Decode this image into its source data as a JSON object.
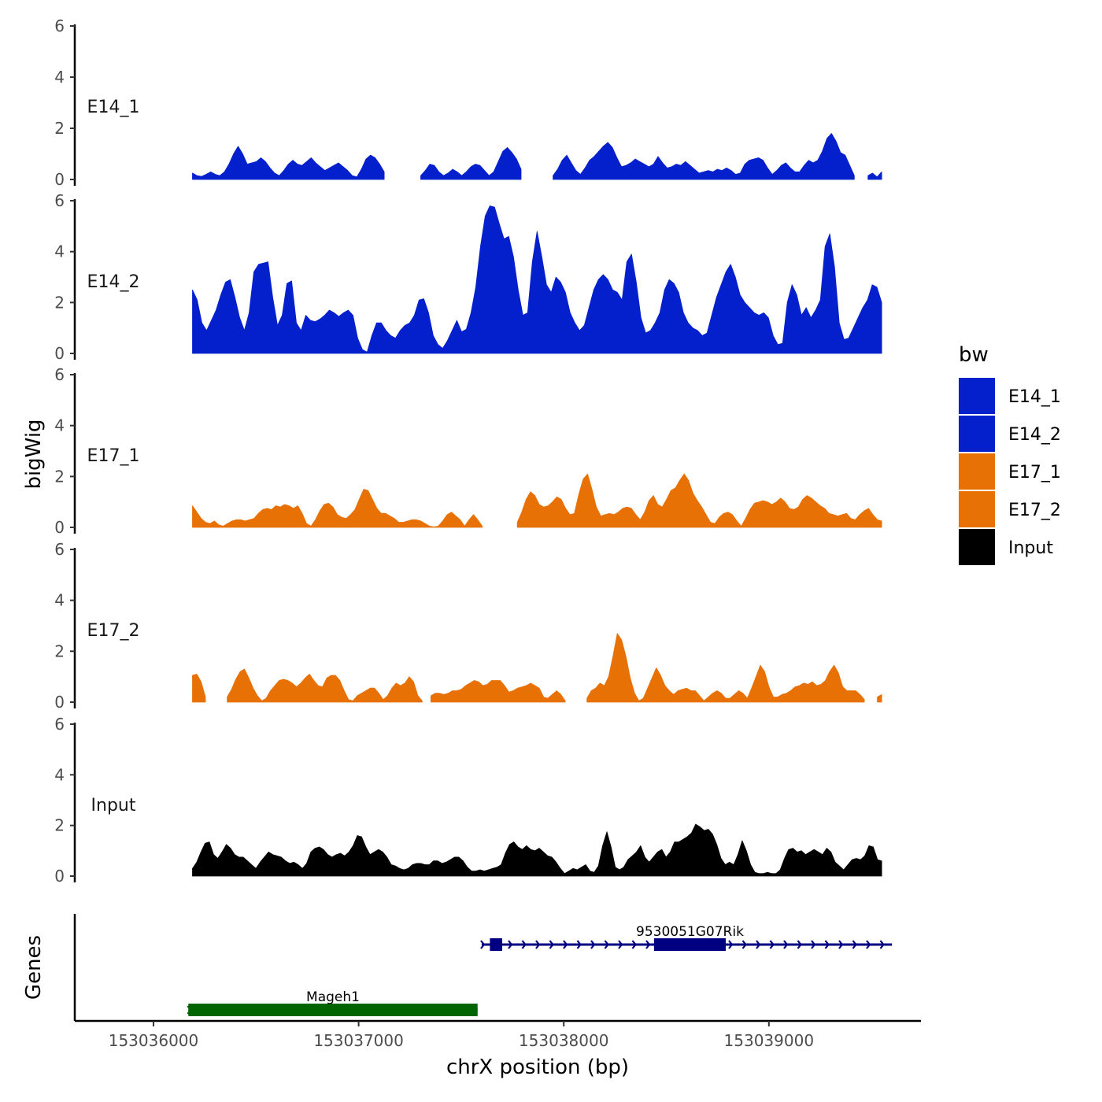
{
  "chart_data": {
    "type": "area",
    "title": "",
    "ylabel": "bigWig",
    "xlabel": "chrX position (bp)",
    "xlim": [
      153035750,
      153039850
    ],
    "ylim": [
      0,
      6
    ],
    "y_ticks": [
      0,
      2,
      4,
      6
    ],
    "x_ticks": [
      153036000,
      153037000,
      153038000,
      153039000
    ],
    "x_tick_labels": [
      "153036000",
      "153037000",
      "153038000",
      "153039000"
    ],
    "data_start": 153036190,
    "data_end": 153039550,
    "tracks": [
      {
        "name": "E14_1",
        "color": "#0320CC",
        "values": [
          0.25,
          0.15,
          0.12,
          0.2,
          0.3,
          0.2,
          0.15,
          0.3,
          0.6,
          1.0,
          1.3,
          1.0,
          0.6,
          0.65,
          0.7,
          0.85,
          0.7,
          0.45,
          0.25,
          0.15,
          0.35,
          0.6,
          0.75,
          0.6,
          0.55,
          0.7,
          0.85,
          0.65,
          0.5,
          0.35,
          0.45,
          0.55,
          0.65,
          0.5,
          0.35,
          0.15,
          0.1,
          0.4,
          0.8,
          0.95,
          0.85,
          0.6,
          0.3,
          null,
          null,
          null,
          null,
          null,
          null,
          null,
          0.15,
          0.35,
          0.6,
          0.55,
          0.3,
          0.15,
          0.25,
          0.4,
          0.3,
          0.15,
          0.3,
          0.5,
          0.6,
          0.55,
          0.35,
          0.15,
          0.3,
          0.7,
          1.1,
          1.25,
          1.05,
          0.8,
          0.4,
          null,
          null,
          null,
          null,
          null,
          null,
          0.15,
          0.4,
          0.75,
          0.95,
          0.65,
          0.35,
          0.2,
          0.45,
          0.75,
          0.9,
          1.1,
          1.3,
          1.45,
          1.25,
          0.85,
          0.5,
          0.55,
          0.65,
          0.8,
          0.7,
          0.6,
          0.5,
          0.6,
          0.9,
          0.65,
          0.45,
          0.5,
          0.6,
          0.55,
          0.7,
          0.55,
          0.4,
          0.25,
          0.3,
          0.35,
          0.3,
          0.4,
          0.35,
          0.45,
          0.35,
          0.2,
          0.25,
          0.6,
          0.75,
          0.8,
          0.85,
          0.75,
          0.45,
          0.2,
          0.35,
          0.55,
          0.65,
          0.45,
          0.3,
          0.3,
          0.55,
          0.75,
          0.65,
          0.75,
          1.1,
          1.6,
          1.8,
          1.5,
          1.05,
          0.95,
          0.55,
          0.15,
          null,
          null,
          0.15,
          0.25,
          0.1,
          0.3
        ]
      },
      {
        "name": "E14_2",
        "color": "#0320CC",
        "values": [
          2.5,
          2.1,
          1.2,
          0.9,
          1.3,
          1.7,
          2.3,
          2.8,
          2.9,
          2.2,
          1.4,
          0.9,
          1.6,
          3.2,
          3.5,
          3.55,
          3.6,
          2.2,
          1.1,
          1.5,
          2.75,
          2.85,
          1.2,
          0.9,
          1.5,
          1.3,
          1.25,
          1.35,
          1.5,
          1.7,
          1.6,
          1.45,
          1.6,
          1.7,
          1.5,
          0.6,
          0.15,
          0.05,
          0.7,
          1.2,
          1.2,
          0.9,
          0.7,
          0.6,
          0.9,
          1.1,
          1.2,
          1.5,
          2.1,
          2.15,
          1.6,
          0.7,
          0.35,
          0.2,
          0.5,
          0.9,
          1.3,
          0.85,
          0.95,
          1.6,
          2.6,
          4.2,
          5.4,
          5.8,
          5.75,
          5.1,
          4.5,
          4.6,
          3.8,
          2.5,
          1.5,
          1.6,
          3.6,
          4.8,
          3.8,
          2.7,
          2.4,
          3.0,
          2.8,
          2.4,
          1.6,
          1.2,
          0.9,
          1.1,
          1.8,
          2.5,
          2.9,
          3.1,
          2.9,
          2.5,
          2.4,
          2.1,
          3.6,
          3.9,
          2.8,
          1.4,
          0.8,
          0.9,
          1.2,
          1.6,
          2.5,
          2.9,
          2.75,
          2.4,
          1.6,
          1.2,
          1.0,
          0.9,
          0.7,
          0.8,
          1.5,
          2.2,
          2.7,
          3.2,
          3.5,
          3.0,
          2.3,
          2.0,
          1.8,
          1.6,
          1.5,
          1.6,
          1.4,
          0.7,
          0.35,
          0.4,
          2.0,
          2.7,
          2.3,
          1.5,
          1.8,
          1.4,
          1.7,
          2.1,
          4.2,
          4.7,
          3.4,
          1.2,
          0.55,
          0.6,
          1.0,
          1.4,
          1.8,
          2.1,
          2.7,
          2.6,
          2.0
        ]
      },
      {
        "name": "E17_1",
        "color": "#E87106",
        "values": [
          0.85,
          0.6,
          0.35,
          0.2,
          0.15,
          0.25,
          0.1,
          0.05,
          0.15,
          0.25,
          0.3,
          0.3,
          0.25,
          0.3,
          0.35,
          0.55,
          0.7,
          0.75,
          0.7,
          0.85,
          0.8,
          0.9,
          0.85,
          0.75,
          0.85,
          0.55,
          0.15,
          0.05,
          0.3,
          0.65,
          0.9,
          0.95,
          0.8,
          0.5,
          0.4,
          0.35,
          0.5,
          0.7,
          1.1,
          1.5,
          1.45,
          1.1,
          0.75,
          0.55,
          0.55,
          0.45,
          0.35,
          0.2,
          0.2,
          0.25,
          0.3,
          0.3,
          0.25,
          0.15,
          0.05,
          0.02,
          0.05,
          0.25,
          0.5,
          0.6,
          0.45,
          0.3,
          0.05,
          0.3,
          0.5,
          0.3,
          0.05,
          null,
          null,
          null,
          null,
          null,
          null,
          null,
          0.2,
          0.6,
          1.1,
          1.4,
          1.25,
          0.9,
          0.8,
          0.85,
          1.0,
          1.2,
          1.1,
          0.75,
          0.5,
          0.55,
          1.3,
          1.9,
          2.1,
          1.5,
          0.8,
          0.45,
          0.5,
          0.55,
          0.5,
          0.6,
          0.75,
          0.8,
          0.75,
          0.5,
          0.3,
          0.6,
          1.05,
          1.25,
          0.9,
          0.8,
          1.1,
          1.45,
          1.55,
          1.85,
          2.1,
          1.85,
          1.35,
          1.05,
          0.8,
          0.5,
          0.2,
          0.15,
          0.4,
          0.55,
          0.6,
          0.5,
          0.25,
          0.05,
          0.35,
          0.7,
          0.95,
          1.0,
          1.05,
          1.0,
          0.9,
          1.0,
          1.15,
          1.0,
          0.75,
          0.7,
          0.8,
          1.1,
          1.25,
          1.15,
          1.0,
          0.85,
          0.75,
          0.55,
          0.5,
          0.45,
          0.5,
          0.55,
          0.35,
          0.3,
          0.5,
          0.65,
          0.75,
          0.5,
          0.3,
          0.25
        ]
      },
      {
        "name": "E17_2",
        "color": "#E87106",
        "values": [
          1.05,
          1.1,
          0.8,
          0.2,
          null,
          null,
          null,
          null,
          0.2,
          0.5,
          0.9,
          1.2,
          1.3,
          0.95,
          0.55,
          0.25,
          0.05,
          0.15,
          0.45,
          0.65,
          0.85,
          0.9,
          0.85,
          0.75,
          0.6,
          0.75,
          0.95,
          1.1,
          0.85,
          0.65,
          0.6,
          0.95,
          1.05,
          1.05,
          0.85,
          0.45,
          0.1,
          0.05,
          0.25,
          0.35,
          0.45,
          0.55,
          0.55,
          0.35,
          0.1,
          0.25,
          0.55,
          0.75,
          0.65,
          0.75,
          1.0,
          0.8,
          0.25,
          0.05,
          null,
          0.25,
          0.35,
          0.35,
          0.3,
          0.35,
          0.45,
          0.45,
          0.5,
          0.65,
          0.75,
          0.85,
          0.8,
          0.65,
          0.7,
          0.85,
          0.85,
          0.85,
          0.65,
          0.4,
          0.45,
          0.55,
          0.6,
          0.65,
          0.75,
          0.65,
          0.55,
          0.2,
          0.15,
          0.3,
          0.45,
          0.3,
          0.05,
          null,
          null,
          null,
          null,
          0.15,
          0.45,
          0.55,
          0.75,
          0.65,
          1.0,
          1.8,
          2.7,
          2.45,
          1.8,
          0.95,
          0.35,
          0.05,
          0.15,
          0.55,
          0.95,
          1.35,
          1.05,
          0.65,
          0.45,
          0.3,
          0.45,
          0.5,
          0.55,
          0.45,
          0.45,
          0.25,
          0.05,
          0.2,
          0.35,
          0.45,
          0.35,
          0.15,
          0.15,
          0.3,
          0.45,
          0.35,
          0.15,
          0.55,
          1.0,
          1.45,
          1.2,
          0.6,
          0.2,
          0.2,
          0.3,
          0.35,
          0.45,
          0.6,
          0.65,
          0.75,
          0.7,
          0.8,
          0.65,
          0.7,
          0.85,
          1.2,
          1.45,
          1.15,
          0.6,
          0.45,
          0.45,
          0.45,
          0.3,
          0.1,
          null,
          null,
          0.2,
          0.3
        ]
      },
      {
        "name": "Input",
        "color": "#000000",
        "values": [
          0.3,
          0.55,
          0.95,
          1.3,
          1.35,
          0.85,
          0.7,
          0.95,
          1.25,
          1.1,
          0.85,
          0.75,
          0.75,
          0.6,
          0.45,
          0.3,
          0.55,
          0.75,
          0.95,
          0.85,
          0.8,
          0.75,
          0.6,
          0.5,
          0.55,
          0.45,
          0.3,
          0.5,
          0.95,
          1.1,
          1.15,
          1.05,
          0.85,
          0.75,
          0.85,
          0.9,
          0.8,
          0.95,
          1.2,
          1.6,
          1.55,
          1.15,
          0.85,
          0.95,
          1.05,
          0.95,
          0.75,
          0.45,
          0.4,
          0.3,
          0.25,
          0.3,
          0.45,
          0.5,
          0.5,
          0.45,
          0.45,
          0.6,
          0.6,
          0.5,
          0.55,
          0.65,
          0.75,
          0.75,
          0.6,
          0.35,
          0.2,
          0.2,
          0.25,
          0.2,
          0.25,
          0.3,
          0.35,
          0.45,
          0.9,
          1.25,
          1.35,
          1.15,
          1.05,
          1.2,
          1.05,
          1.0,
          1.1,
          0.95,
          0.8,
          0.75,
          0.55,
          0.3,
          0.1,
          0.2,
          0.3,
          0.25,
          0.35,
          0.45,
          0.2,
          0.15,
          0.4,
          1.2,
          1.75,
          1.15,
          0.35,
          0.25,
          0.35,
          0.65,
          0.8,
          0.95,
          1.2,
          0.75,
          0.55,
          0.75,
          0.95,
          1.05,
          0.75,
          0.95,
          1.35,
          1.35,
          1.45,
          1.55,
          1.7,
          2.05,
          1.95,
          1.8,
          1.85,
          1.65,
          1.25,
          0.7,
          0.45,
          0.55,
          0.45,
          0.85,
          1.4,
          1.0,
          0.45,
          0.15,
          0.1,
          0.1,
          0.15,
          0.1,
          0.1,
          0.25,
          0.7,
          1.05,
          1.1,
          0.95,
          1.0,
          0.85,
          0.95,
          1.05,
          0.95,
          0.85,
          1.1,
          0.95,
          0.55,
          0.4,
          0.25,
          0.45,
          0.65,
          0.7,
          0.65,
          0.8,
          1.2,
          1.15,
          0.65,
          0.6
        ]
      }
    ],
    "legend": {
      "title": "bw",
      "position": "right",
      "entries": [
        {
          "label": "E14_1",
          "color": "#0320CC"
        },
        {
          "label": "E14_2",
          "color": "#0320CC"
        },
        {
          "label": "E17_1",
          "color": "#E87106"
        },
        {
          "label": "E17_2",
          "color": "#E87106"
        },
        {
          "label": "Input",
          "color": "#000000"
        }
      ]
    },
    "genes_panel": {
      "ylabel": "Genes",
      "genes": [
        {
          "name": "9530051G07Rik",
          "strand": "+",
          "start": 153037600,
          "end": 153039600,
          "color": "#000080",
          "exons": [
            [
              153037640,
              153037700
            ],
            [
              153038440,
              153038790
            ]
          ]
        },
        {
          "name": "Mageh1",
          "strand": "+",
          "start": 153036170,
          "end": 153037580,
          "color": "#006400",
          "exons": [
            [
              153036170,
              153037580
            ]
          ]
        }
      ]
    }
  }
}
